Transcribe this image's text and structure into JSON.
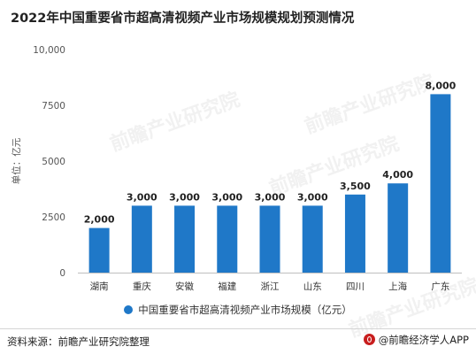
{
  "title": "2022年中国重要省市超高清视频产业市场规模规划预测情况",
  "chart_data": {
    "type": "bar",
    "categories": [
      "湖南",
      "重庆",
      "安徽",
      "福建",
      "浙江",
      "山东",
      "四川",
      "上海",
      "广东"
    ],
    "series": [
      {
        "name": "中国重要省市超高清视频产业市场规模（亿元）",
        "values": [
          2000,
          3000,
          3000,
          3000,
          3000,
          3000,
          3500,
          4000,
          8000
        ]
      }
    ],
    "data_labels": [
      "2,000",
      "3,000",
      "3,000",
      "3,000",
      "3,000",
      "3,000",
      "3,500",
      "4,000",
      "8,000"
    ],
    "ylabel": "单位：亿元",
    "ylim": [
      0,
      10000
    ],
    "yticks": [
      0,
      2500,
      5000,
      7500,
      10000
    ],
    "ytick_labels": [
      "0",
      "2500",
      "5000",
      "7500",
      "10,000"
    ],
    "grid": false,
    "legend": "bottom",
    "bar_color": "#1f78c8"
  },
  "footer": {
    "source": "资料来源：前瞻产业研究院整理",
    "brand": "@前瞻经济学人APP"
  },
  "watermark": "前瞻产业研究院"
}
